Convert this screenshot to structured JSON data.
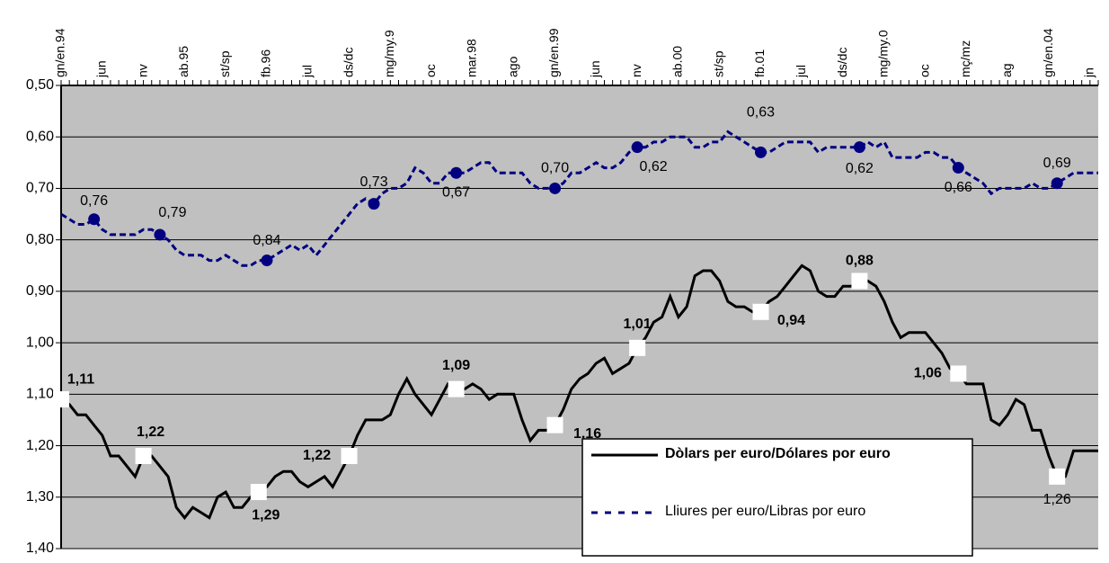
{
  "chart_data": {
    "type": "line",
    "categories": [
      "gn/en.94",
      null,
      null,
      null,
      null,
      "jun",
      null,
      null,
      null,
      null,
      "nv",
      null,
      null,
      null,
      null,
      "ab.95",
      null,
      null,
      null,
      null,
      "st/sp",
      null,
      null,
      null,
      null,
      "fb.96",
      null,
      null,
      null,
      null,
      "jul",
      null,
      null,
      null,
      null,
      "ds/dc",
      null,
      null,
      null,
      null,
      "mg/my.9",
      null,
      null,
      null,
      null,
      "oc",
      null,
      null,
      null,
      null,
      "mar.98",
      null,
      null,
      null,
      null,
      "ago",
      null,
      null,
      null,
      null,
      "gn/en.99",
      null,
      null,
      null,
      null,
      "jun",
      null,
      null,
      null,
      null,
      "nv",
      null,
      null,
      null,
      null,
      "ab.00",
      null,
      null,
      null,
      null,
      "st/sp",
      null,
      null,
      null,
      null,
      "fb.01",
      null,
      null,
      null,
      null,
      "jul",
      null,
      null,
      null,
      null,
      "ds/dc",
      null,
      null,
      null,
      null,
      "mg/my.0",
      null,
      null,
      null,
      null,
      "oc",
      null,
      null,
      null,
      null,
      "mç/mz",
      null,
      null,
      null,
      null,
      "ag",
      null,
      null,
      null,
      null,
      "gn/en.04",
      null,
      null,
      null,
      null,
      "jn",
      null
    ],
    "series": [
      {
        "name": "Dòlars per euro/Dólares por euro",
        "color": "#000000",
        "style": "solid",
        "values": [
          1.11,
          1.12,
          1.14,
          1.14,
          1.16,
          1.18,
          1.22,
          1.22,
          1.24,
          1.26,
          1.22,
          1.22,
          1.24,
          1.26,
          1.32,
          1.34,
          1.32,
          1.33,
          1.34,
          1.3,
          1.29,
          1.32,
          1.32,
          1.3,
          1.29,
          1.28,
          1.26,
          1.25,
          1.25,
          1.27,
          1.28,
          1.27,
          1.26,
          1.28,
          1.25,
          1.22,
          1.18,
          1.15,
          1.15,
          1.15,
          1.14,
          1.1,
          1.07,
          1.1,
          1.12,
          1.14,
          1.11,
          1.08,
          1.09,
          1.09,
          1.08,
          1.09,
          1.11,
          1.1,
          1.1,
          1.1,
          1.15,
          1.19,
          1.17,
          1.17,
          1.16,
          1.13,
          1.09,
          1.07,
          1.06,
          1.04,
          1.03,
          1.06,
          1.05,
          1.04,
          1.01,
          0.99,
          0.96,
          0.95,
          0.91,
          0.95,
          0.93,
          0.87,
          0.86,
          0.86,
          0.88,
          0.92,
          0.93,
          0.93,
          0.94,
          0.94,
          0.92,
          0.91,
          0.89,
          0.87,
          0.85,
          0.86,
          0.9,
          0.91,
          0.91,
          0.89,
          0.89,
          0.88,
          0.88,
          0.89,
          0.92,
          0.96,
          0.99,
          0.98,
          0.98,
          0.98,
          1.0,
          1.02,
          1.05,
          1.06,
          1.08,
          1.08,
          1.08,
          1.15,
          1.16,
          1.14,
          1.11,
          1.12,
          1.17,
          1.17,
          1.22,
          1.26,
          1.26,
          1.21,
          1.21,
          1.21,
          1.21
        ],
        "value_labels": [
          "1,11",
          null,
          null,
          null,
          null,
          null,
          null,
          null,
          null,
          null,
          "1,22",
          null,
          null,
          null,
          null,
          null,
          null,
          null,
          null,
          null,
          null,
          null,
          null,
          null,
          "1,29",
          null,
          null,
          null,
          null,
          null,
          null,
          null,
          null,
          null,
          null,
          "1,22",
          null,
          null,
          null,
          null,
          null,
          null,
          null,
          null,
          null,
          null,
          null,
          null,
          "1,09",
          null,
          null,
          null,
          null,
          null,
          null,
          null,
          null,
          null,
          null,
          null,
          "1,16",
          null,
          null,
          null,
          null,
          null,
          null,
          null,
          null,
          null,
          "1,01",
          null,
          null,
          null,
          null,
          null,
          null,
          null,
          null,
          null,
          null,
          null,
          null,
          null,
          null,
          "0,94",
          null,
          null,
          null,
          null,
          null,
          null,
          null,
          null,
          null,
          null,
          null,
          "0,88",
          null,
          null,
          null,
          null,
          null,
          null,
          null,
          null,
          null,
          null,
          null,
          "1,06",
          null,
          null,
          null,
          null,
          null,
          null,
          null,
          null,
          null,
          null,
          null,
          "1,26",
          null,
          null,
          null,
          null,
          null
        ]
      },
      {
        "name": "Lliures per euro/Libras por euro",
        "color": "#000080",
        "style": "dashed",
        "values": [
          0.75,
          0.76,
          0.77,
          0.77,
          0.76,
          0.78,
          0.79,
          0.79,
          0.79,
          0.79,
          0.78,
          0.78,
          0.79,
          0.8,
          0.82,
          0.83,
          0.83,
          0.83,
          0.84,
          0.84,
          0.83,
          0.84,
          0.85,
          0.85,
          0.84,
          0.84,
          0.83,
          0.82,
          0.81,
          0.82,
          0.81,
          0.83,
          0.81,
          0.79,
          0.77,
          0.75,
          0.73,
          0.72,
          0.73,
          0.71,
          0.7,
          0.7,
          0.69,
          0.66,
          0.67,
          0.69,
          0.69,
          0.67,
          0.67,
          0.67,
          0.66,
          0.65,
          0.65,
          0.67,
          0.67,
          0.67,
          0.67,
          0.69,
          0.7,
          0.7,
          0.7,
          0.69,
          0.67,
          0.67,
          0.66,
          0.65,
          0.66,
          0.66,
          0.65,
          0.63,
          0.62,
          0.62,
          0.61,
          0.61,
          0.6,
          0.6,
          0.6,
          0.62,
          0.62,
          0.61,
          0.61,
          0.59,
          0.6,
          0.61,
          0.62,
          0.63,
          0.63,
          0.62,
          0.61,
          0.61,
          0.61,
          0.61,
          0.63,
          0.62,
          0.62,
          0.62,
          0.62,
          0.62,
          0.61,
          0.62,
          0.61,
          0.64,
          0.64,
          0.64,
          0.64,
          0.63,
          0.63,
          0.64,
          0.64,
          0.66,
          0.67,
          0.68,
          0.69,
          0.71,
          0.7,
          0.7,
          0.7,
          0.7,
          0.69,
          0.7,
          0.7,
          0.69,
          0.68,
          0.67,
          0.67,
          0.67,
          0.67
        ],
        "value_labels": [
          null,
          null,
          null,
          null,
          "0,76",
          null,
          null,
          null,
          null,
          null,
          null,
          null,
          "0,79",
          null,
          null,
          null,
          null,
          null,
          null,
          null,
          null,
          null,
          null,
          null,
          null,
          "0,84",
          null,
          null,
          null,
          null,
          null,
          null,
          null,
          null,
          null,
          null,
          null,
          null,
          "0,73",
          null,
          null,
          null,
          null,
          null,
          null,
          null,
          null,
          null,
          "0,67",
          null,
          null,
          null,
          null,
          null,
          null,
          null,
          null,
          null,
          null,
          null,
          "0,70",
          null,
          null,
          null,
          null,
          null,
          null,
          null,
          null,
          null,
          "0,62",
          null,
          null,
          null,
          null,
          null,
          null,
          null,
          null,
          null,
          null,
          null,
          null,
          null,
          null,
          "0,63",
          null,
          null,
          null,
          null,
          null,
          null,
          null,
          null,
          null,
          null,
          null,
          "0,62",
          null,
          null,
          null,
          null,
          null,
          null,
          null,
          null,
          null,
          null,
          null,
          "0,66",
          null,
          null,
          null,
          null,
          null,
          null,
          null,
          null,
          null,
          null,
          null,
          "0,69",
          null,
          null,
          null,
          null,
          null
        ]
      }
    ],
    "ylim": [
      0.5,
      1.4
    ],
    "y_inverted": true,
    "yticks": [
      {
        "value": 0.5,
        "label": "0,50"
      },
      {
        "value": 0.6,
        "label": "0,60"
      },
      {
        "value": 0.7,
        "label": "0,70"
      },
      {
        "value": 0.8,
        "label": "0,80"
      },
      {
        "value": 0.9,
        "label": "0,90"
      },
      {
        "value": 1.0,
        "label": "1,00"
      },
      {
        "value": 1.1,
        "label": "1,10"
      },
      {
        "value": 1.2,
        "label": "1,20"
      },
      {
        "value": 1.3,
        "label": "1,30"
      },
      {
        "value": 1.4,
        "label": "1,40"
      }
    ],
    "grid": true,
    "legend": "lower right",
    "plot_background": "#c0c0c0"
  }
}
